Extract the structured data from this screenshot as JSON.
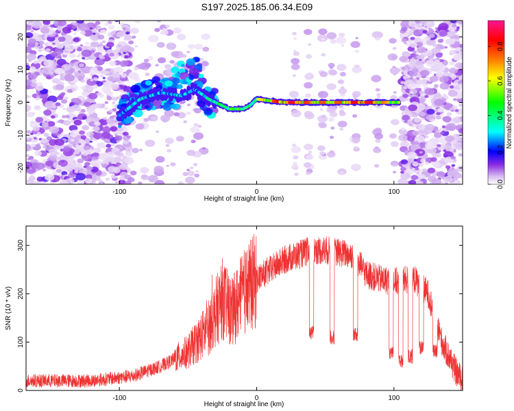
{
  "title": "S197.2025.185.06.34.E09",
  "chart_data": [
    {
      "type": "heatmap",
      "xlabel": "Height of straight line (km)",
      "ylabel": "Frequency (Hz)",
      "xlim": [
        -168,
        150
      ],
      "ylim": [
        -25,
        25
      ],
      "x_ticks": [
        -100,
        0,
        100
      ],
      "y_ticks": [
        -20,
        -10,
        0,
        10,
        20
      ],
      "colorbar": {
        "label": "Normalized spectral amplitude",
        "range": [
          0,
          0.95
        ],
        "ticks": [
          "0.0",
          "0.2",
          "0.4",
          "0.6",
          "0.8"
        ],
        "colors": [
          "#ffffff",
          "#d6b8f0",
          "#8a2be2",
          "#0000ff",
          "#00ffff",
          "#00ff00",
          "#ffff00",
          "#ff8800",
          "#ff0000",
          "#ff1493"
        ]
      },
      "ridge": {
        "description_points": [
          {
            "x": -100,
            "y": -4,
            "v": 0.3
          },
          {
            "x": -85,
            "y": 1,
            "v": 0.35
          },
          {
            "x": -70,
            "y": 3,
            "v": 0.3
          },
          {
            "x": -55,
            "y": 2,
            "v": 0.35
          },
          {
            "x": -45,
            "y": 4,
            "v": 0.3
          },
          {
            "x": -35,
            "y": 1,
            "v": 0.4
          },
          {
            "x": -20,
            "y": -2,
            "v": 0.5
          },
          {
            "x": -10,
            "y": -2,
            "v": 0.6
          },
          {
            "x": -5,
            "y": -1,
            "v": 0.5
          },
          {
            "x": 0,
            "y": 1,
            "v": 0.5
          },
          {
            "x": 20,
            "y": 0,
            "v": 0.85
          },
          {
            "x": 40,
            "y": 0,
            "v": 0.7
          },
          {
            "x": 60,
            "y": 0,
            "v": 0.7
          },
          {
            "x": 80,
            "y": 0,
            "v": 0.85
          },
          {
            "x": 103,
            "y": 0,
            "v": 0.5
          }
        ]
      }
    },
    {
      "type": "line",
      "xlabel": "Height of straight line (km)",
      "ylabel": "SNR (10 * v/v)",
      "xlim": [
        -168,
        150
      ],
      "ylim": [
        0,
        340
      ],
      "x_ticks": [
        -100,
        0,
        100
      ],
      "y_ticks": [
        0,
        100,
        200,
        300
      ],
      "line_color": "#ee3333",
      "envelope": [
        {
          "x": -168,
          "y": 20
        },
        {
          "x": -120,
          "y": 20
        },
        {
          "x": -90,
          "y": 30
        },
        {
          "x": -70,
          "y": 50
        },
        {
          "x": -50,
          "y": 80
        },
        {
          "x": -35,
          "y": 130
        },
        {
          "x": -25,
          "y": 190
        },
        {
          "x": -18,
          "y": 160
        },
        {
          "x": -10,
          "y": 200
        },
        {
          "x": 0,
          "y": 230
        },
        {
          "x": 20,
          "y": 270
        },
        {
          "x": 40,
          "y": 290
        },
        {
          "x": 50,
          "y": 290
        },
        {
          "x": 60,
          "y": 285
        },
        {
          "x": 70,
          "y": 280
        },
        {
          "x": 80,
          "y": 240
        },
        {
          "x": 90,
          "y": 230
        },
        {
          "x": 100,
          "y": 225
        },
        {
          "x": 115,
          "y": 230
        },
        {
          "x": 125,
          "y": 200
        },
        {
          "x": 135,
          "y": 100
        },
        {
          "x": 145,
          "y": 40
        },
        {
          "x": 150,
          "y": 20
        }
      ],
      "dips": [
        {
          "x": 40,
          "y": 120
        },
        {
          "x": 55,
          "y": 110
        },
        {
          "x": 72,
          "y": 115
        },
        {
          "x": 98,
          "y": 80
        },
        {
          "x": 105,
          "y": 60
        },
        {
          "x": 112,
          "y": 70
        },
        {
          "x": 120,
          "y": 90
        },
        {
          "x": 130,
          "y": 80
        }
      ]
    }
  ]
}
